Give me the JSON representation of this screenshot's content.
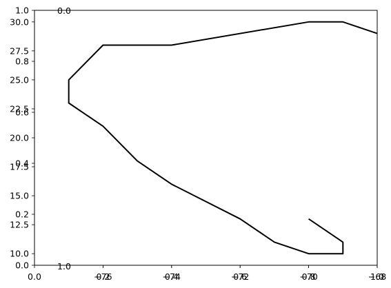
{
  "colors": {
    "background": "#ffffff",
    "axes": "#000000",
    "line": "#000000"
  },
  "chart_data": {
    "type": "line",
    "title": "",
    "xlabel": "",
    "ylabel": "",
    "xlim": [
      -78,
      -68
    ],
    "ylim": [
      9,
      31
    ],
    "grid": false,
    "legend": "none",
    "xticks": [
      "-76",
      "-74",
      "-72",
      "-70",
      "-68"
    ],
    "yticks": [
      "10.0",
      "12.5",
      "15.0",
      "17.5",
      "20.0",
      "22.5",
      "25.0",
      "27.5",
      "30.0"
    ],
    "overlay_xticks": [
      "0.0",
      "0.2",
      "0.4",
      "0.6",
      "0.8",
      "1.0"
    ],
    "overlay_yticks": [
      "0.0",
      "0.2",
      "0.4",
      "0.6",
      "0.8",
      "1.0"
    ],
    "stray_labels": [
      "0.0",
      "1.0"
    ],
    "series": [
      {
        "x": [
          -70,
          -69,
          -69,
          -70,
          -71,
          -72,
          -74,
          -75,
          -76,
          -77,
          -77,
          -76,
          -74,
          -70,
          -69,
          -68
        ],
        "y": [
          13,
          11,
          10,
          10,
          11,
          13,
          16,
          18,
          21,
          23,
          25,
          28,
          28,
          30,
          30,
          29
        ]
      }
    ]
  }
}
